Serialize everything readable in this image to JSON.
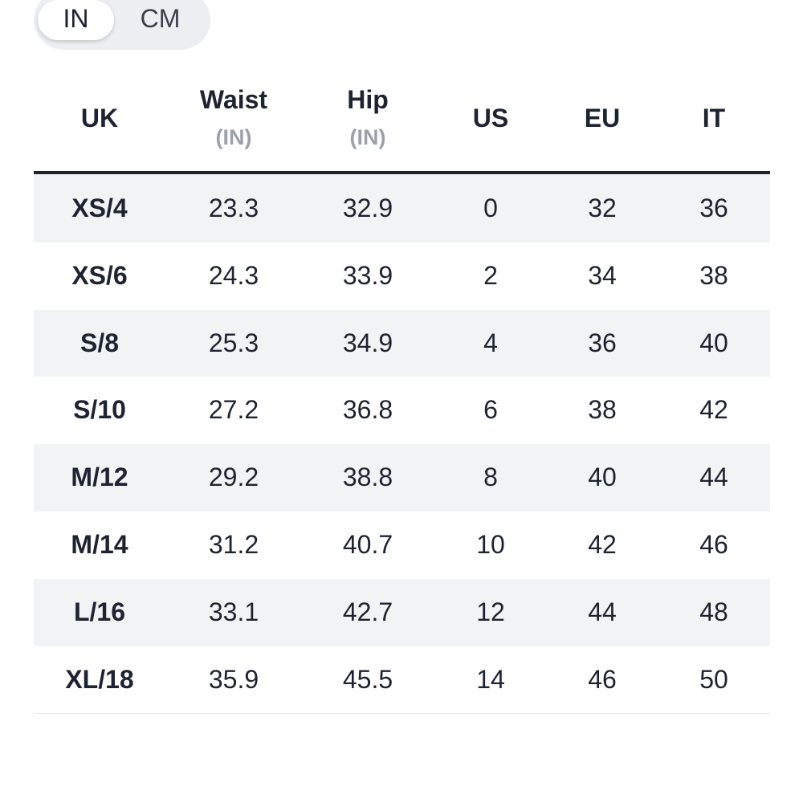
{
  "toggle": {
    "options": [
      "IN",
      "CM"
    ],
    "active": 0
  },
  "table": {
    "header": [
      {
        "label": "UK"
      },
      {
        "label": "Waist",
        "unit": "(IN)"
      },
      {
        "label": "Hip",
        "unit": "(IN)"
      },
      {
        "label": "US"
      },
      {
        "label": "EU"
      },
      {
        "label": "IT"
      }
    ],
    "rows": [
      [
        "XS/4",
        "23.3",
        "32.9",
        "0",
        "32",
        "36"
      ],
      [
        "XS/6",
        "24.3",
        "33.9",
        "2",
        "34",
        "38"
      ],
      [
        "S/8",
        "25.3",
        "34.9",
        "4",
        "36",
        "40"
      ],
      [
        "S/10",
        "27.2",
        "36.8",
        "6",
        "38",
        "42"
      ],
      [
        "M/12",
        "29.2",
        "38.8",
        "8",
        "40",
        "44"
      ],
      [
        "M/14",
        "31.2",
        "40.7",
        "10",
        "42",
        "46"
      ],
      [
        "L/16",
        "33.1",
        "42.7",
        "12",
        "44",
        "48"
      ],
      [
        "XL/18",
        "35.9",
        "45.5",
        "14",
        "46",
        "50"
      ]
    ]
  }
}
